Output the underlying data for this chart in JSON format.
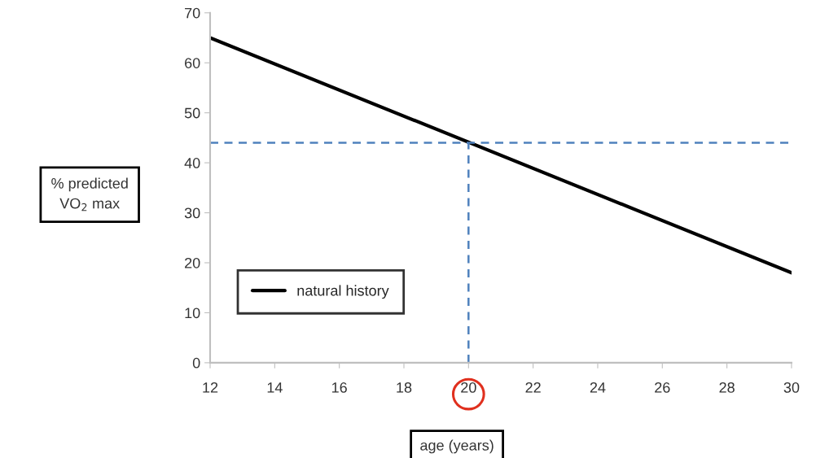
{
  "chart_data": {
    "type": "line",
    "xlabel": "age (years)",
    "ylabel": "% predicted\nVO$_{2}$ max",
    "series": [
      {
        "name": "natural history",
        "color": "#000000",
        "x": [
          12,
          30
        ],
        "values": [
          65,
          18
        ],
        "line_style": "solid"
      },
      {
        "color": "#4f81bd",
        "x": [
          12,
          30
        ],
        "values": [
          44,
          44
        ],
        "line_style": "dashed"
      },
      {
        "color": "#4f81bd",
        "x": [
          20,
          20
        ],
        "values": [
          0,
          44
        ],
        "line_style": "dashed"
      }
    ],
    "xlim": [
      12,
      30
    ],
    "xticks": [
      12,
      14,
      16,
      18,
      20,
      22,
      24,
      26,
      28,
      30
    ],
    "ylim": [
      0,
      70
    ],
    "yticks": [
      0,
      10,
      20,
      30,
      40,
      50,
      60,
      70
    ],
    "grid": false,
    "legend": "bottom left",
    "marker": "none"
  }
}
